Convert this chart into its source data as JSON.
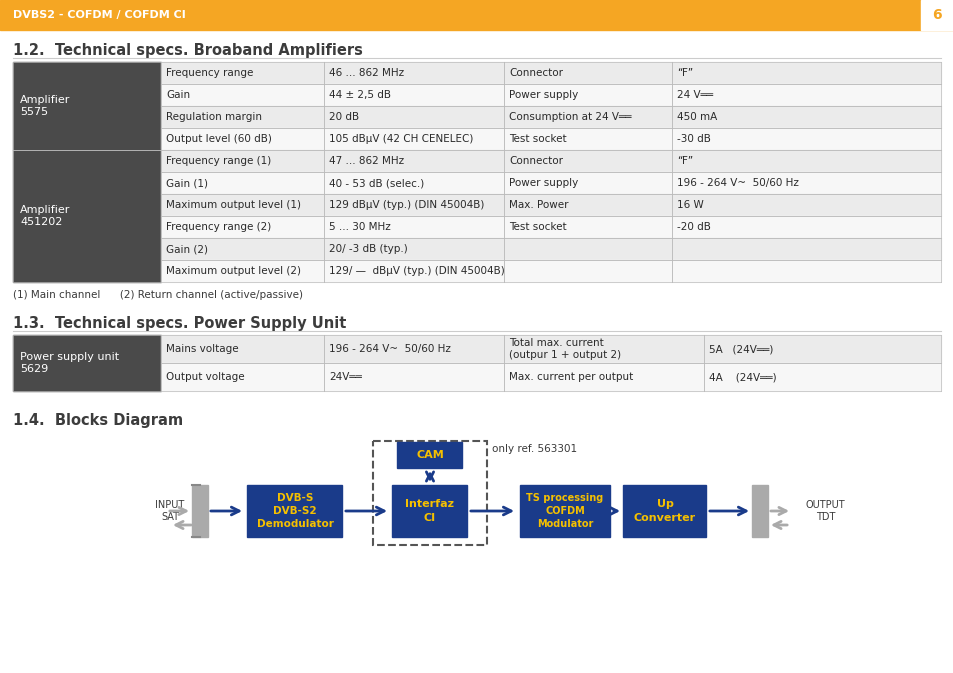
{
  "header_text": "DVBS2 - COFDM / COFDM CI",
  "header_bg": "#F5A623",
  "header_text_color": "#FFFFFF",
  "page_num": "6",
  "bg_color": "#FFFFFF",
  "section1_title": "1.2.  Technical specs. Broaband Amplifiers",
  "section2_title": "1.3.  Technical specs. Power Supply Unit",
  "section3_title": "1.4.  Blocks Diagram",
  "label_bg": "#4A4A4A",
  "label_text_color": "#FFFFFF",
  "row_alt1": "#EBEBEB",
  "row_alt2": "#F7F7F7",
  "border_color": "#BBBBBB",
  "table1_data": {
    "amp1_label": "Amplifier\n5575",
    "amp1_rows": [
      [
        "Frequency range",
        "46 ... 862 MHz",
        "Connector",
        "“F”"
      ],
      [
        "Gain",
        "44 ± 2,5 dB",
        "Power supply",
        "24 V══"
      ],
      [
        "Regulation margin",
        "20 dB",
        "Consumption at 24 V══",
        "450 mA"
      ],
      [
        "Output level (60 dB)",
        "105 dBµV (42 CH CENELEC)",
        "Test socket",
        "-30 dB"
      ]
    ],
    "amp2_label": "Amplifier\n451202",
    "amp2_rows": [
      [
        "Frequency range (1)",
        "47 ... 862 MHz",
        "Connector",
        "“F”"
      ],
      [
        "Gain (1)",
        "40 - 53 dB (selec.)",
        "Power supply",
        "196 - 264 V~  50/60 Hz"
      ],
      [
        "Maximum output level (1)",
        "129 dBµV (typ.) (DIN 45004B)",
        "Max. Power",
        "16 W"
      ],
      [
        "Frequency range (2)",
        "5 ... 30 MHz",
        "Test socket",
        "-20 dB"
      ],
      [
        "Gain (2)",
        "20/ -3 dB (typ.)",
        "",
        ""
      ],
      [
        "Maximum output level (2)",
        "129/ —  dBµV (typ.) (DIN 45004B)",
        "",
        ""
      ]
    ]
  },
  "table1_footnote": "(1) Main channel      (2) Return channel (active/passive)",
  "table2_data": {
    "label": "Power supply unit\n5629",
    "rows": [
      [
        "Mains voltage",
        "196 - 264 V~  50/60 Hz",
        "Total max. current\n(outpur 1 + output 2)",
        "5A   (24V══)"
      ],
      [
        "Output voltage",
        "24V══",
        "Max. current per output",
        "4A    (24V══)"
      ]
    ]
  },
  "blue_block": "#1A3B8A",
  "yellow_text": "#F5C000",
  "diagram_note": "only ref. 563301",
  "block_labels": [
    "DVB-S\nDVB-S2\nDemodulator",
    "Interfaz\nCI",
    "CAM",
    "TS processing\nCOFDM\nModulator",
    "Up\nConverter"
  ],
  "input_label": "INPUT\nSAT",
  "output_label": "OUTPUT\nTDT"
}
